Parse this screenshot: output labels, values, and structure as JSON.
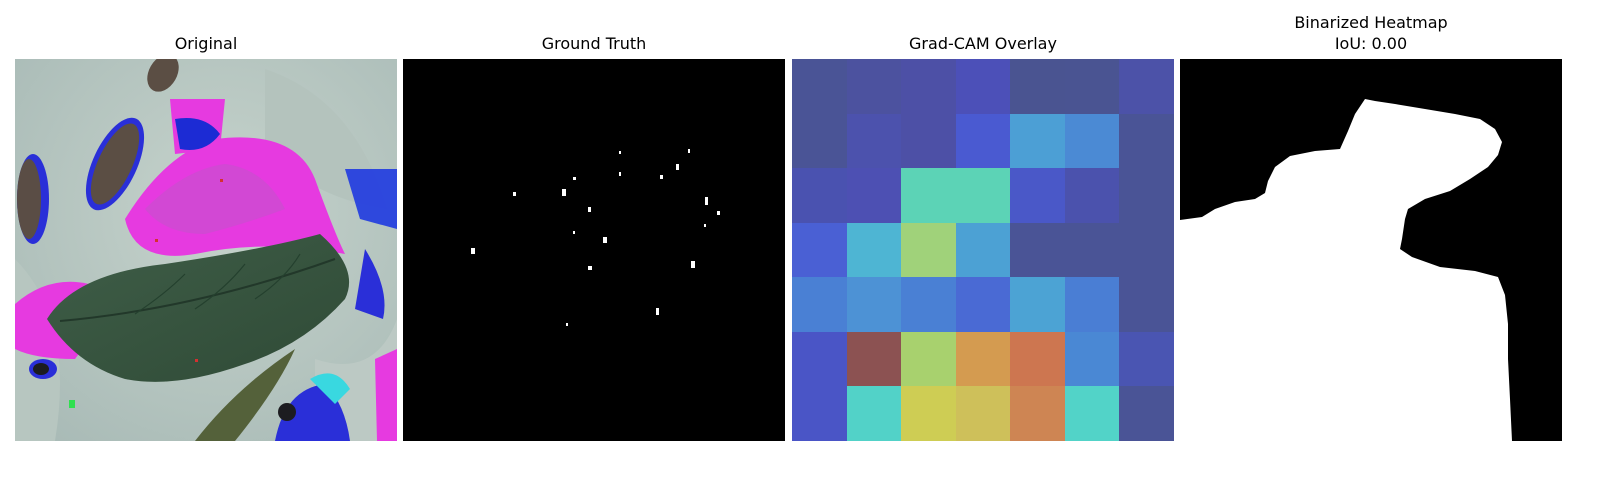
{
  "figure": {
    "panels": [
      {
        "title": "Original"
      },
      {
        "title": "Ground Truth"
      },
      {
        "title": "Grad-CAM Overlay"
      },
      {
        "title": "Binarized Heatmap",
        "subtitle": "IoU: 0.00"
      }
    ],
    "gradcam_grid": [
      [
        "#4a5496",
        "#4c529f",
        "#4d50a6",
        "#4c50b8",
        "#4a5491",
        "#4a5492",
        "#4c52a8"
      ],
      [
        "#4a5496",
        "#4c52ad",
        "#4d50a6",
        "#4a5ad1",
        "#4c9fd5",
        "#4b8ad4",
        "#4a5496"
      ],
      [
        "#4a52b0",
        "#4d50b3",
        "#5cd3b6",
        "#5cd3b6",
        "#4a58c8",
        "#4b52ad",
        "#4a5496"
      ],
      [
        "#4a60d4",
        "#4eb5d3",
        "#a0d27a",
        "#4ca1d4",
        "#4a5496",
        "#4a5496",
        "#4a5496"
      ],
      [
        "#4a80d4",
        "#4d92d5",
        "#4a80d4",
        "#4a6ad4",
        "#4ca3d4",
        "#4a7ed4",
        "#4a5496"
      ],
      [
        "#4a55c6",
        "#8c5252",
        "#a8d16e",
        "#d49b50",
        "#cd7650",
        "#4a88d4",
        "#4a55b2"
      ],
      [
        "#4a55c6",
        "#52d2c8",
        "#cecd54",
        "#cec05a",
        "#ce8553",
        "#52d3c8",
        "#4a5496"
      ]
    ]
  }
}
